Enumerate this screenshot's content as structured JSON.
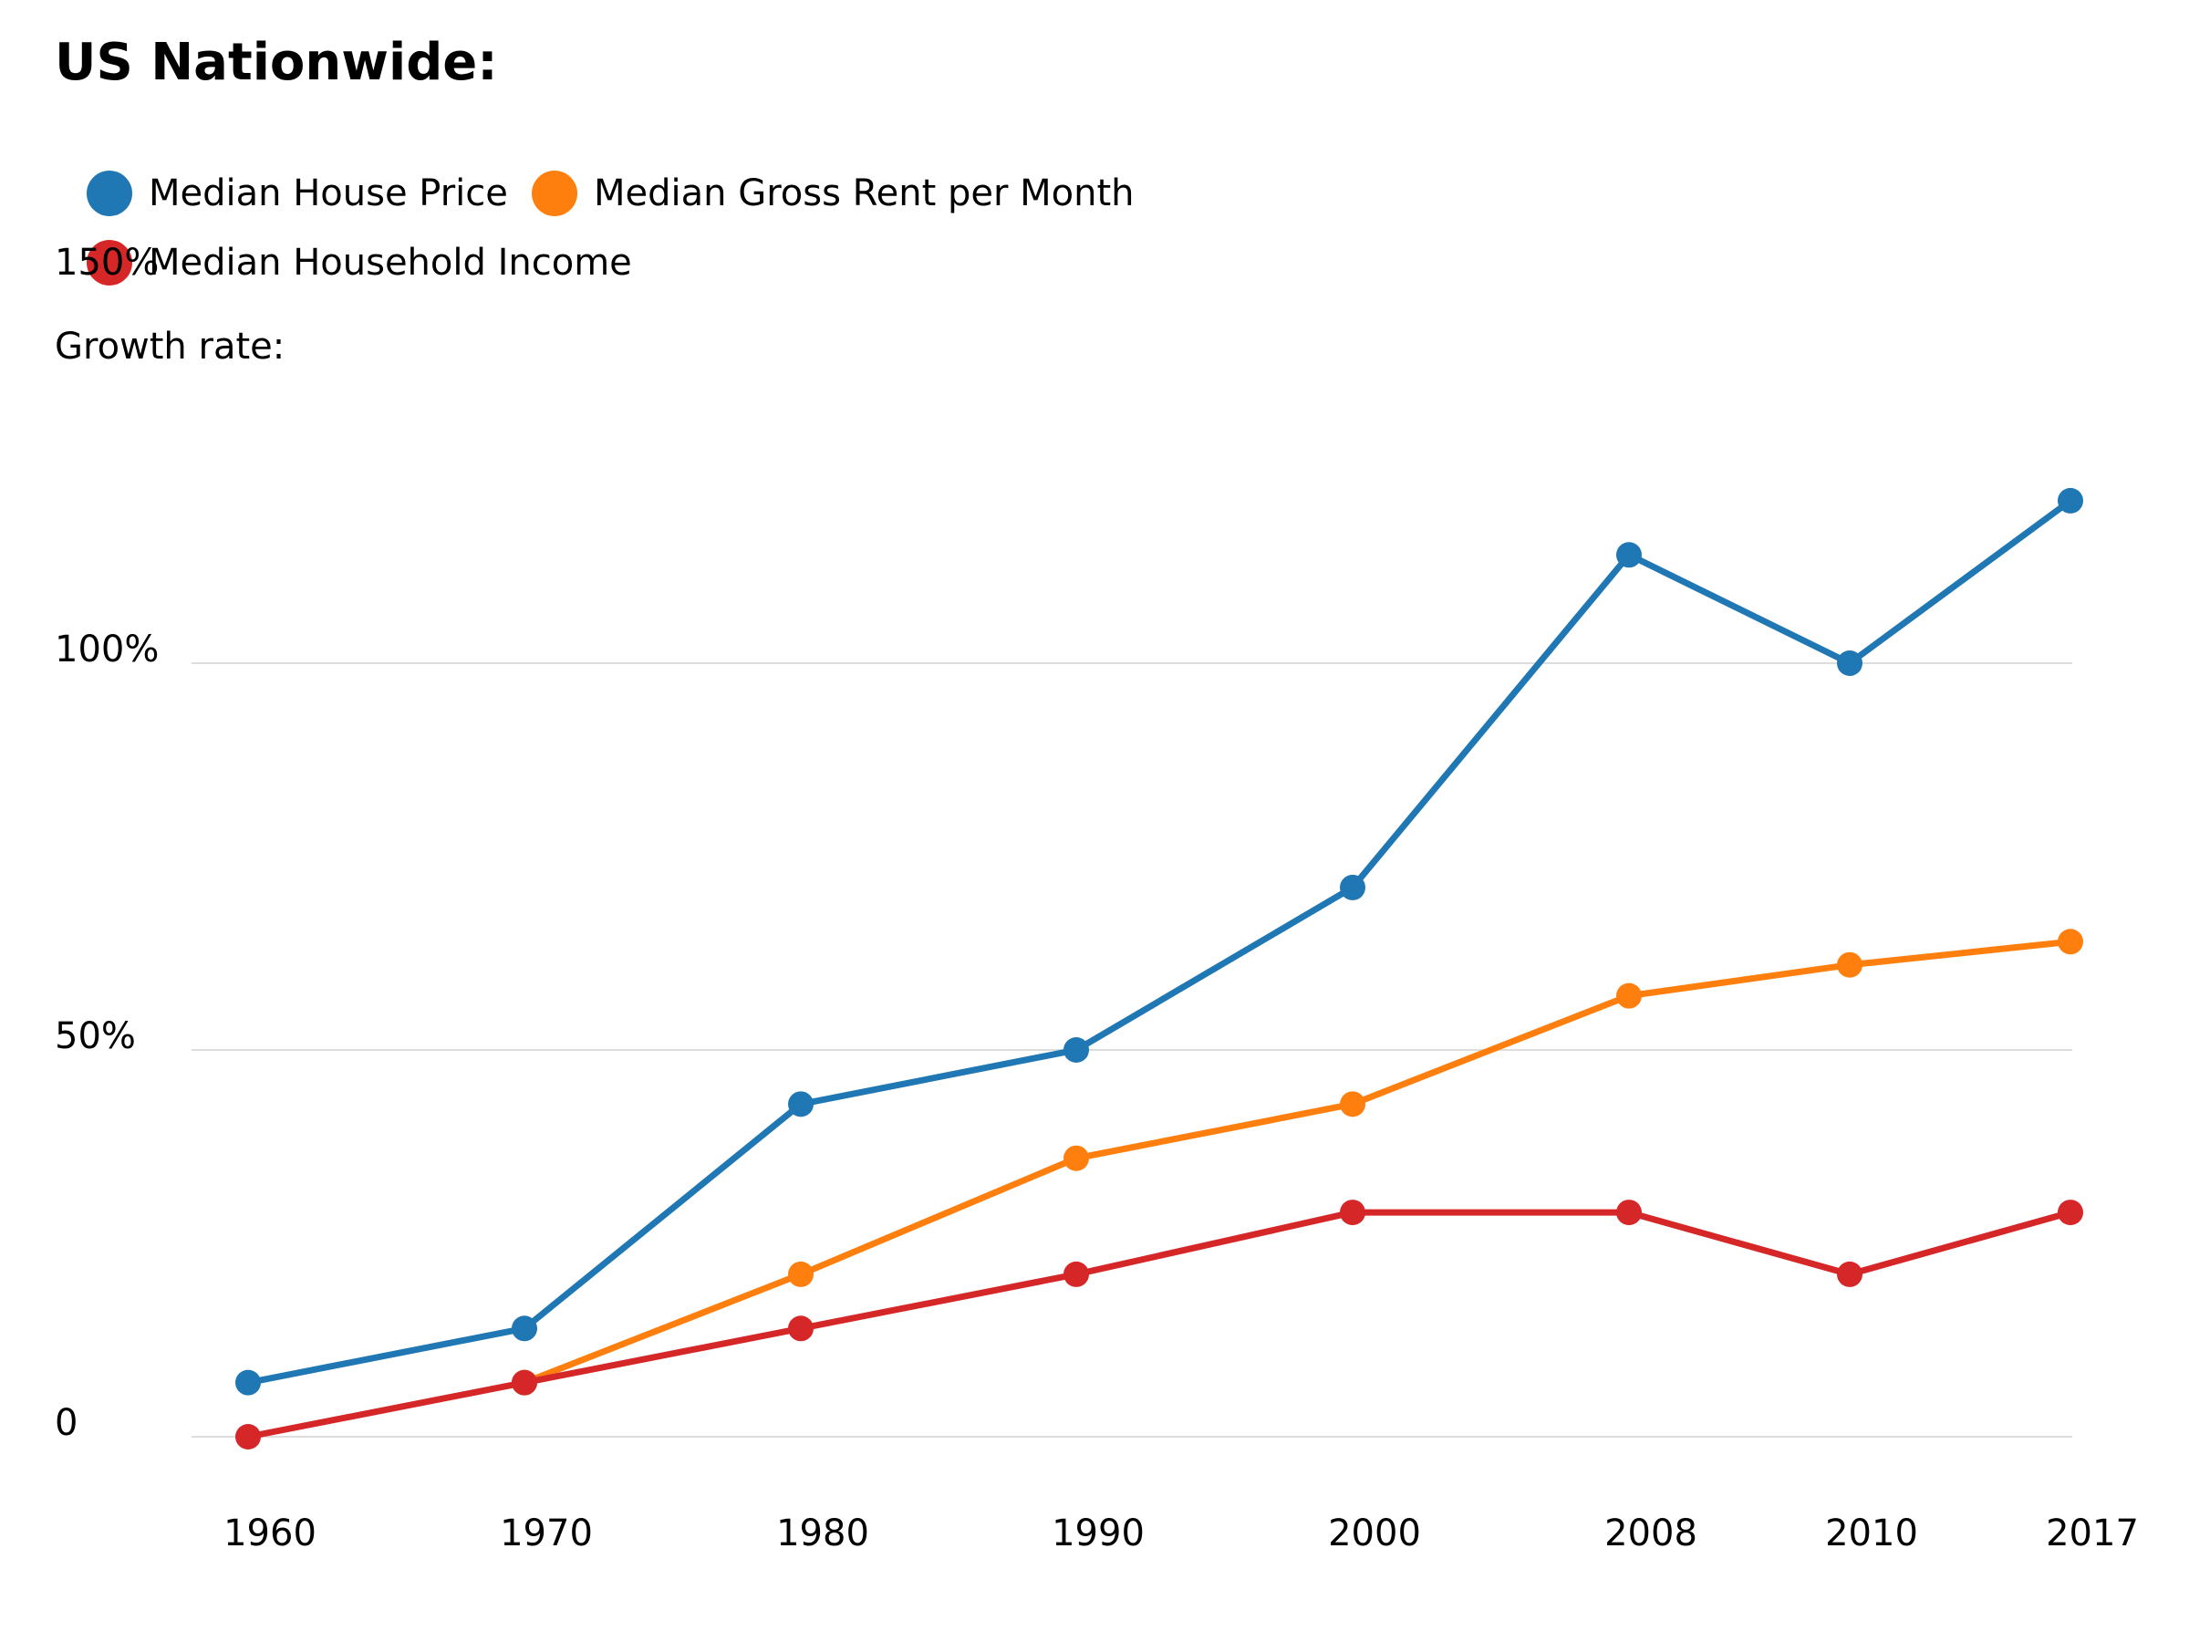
{
  "chart_data": {
    "type": "line",
    "title": "US Nationwide:",
    "ylabel": "Growth rate:",
    "xlabel": "",
    "categories": [
      "1960",
      "1970",
      "1980",
      "1990",
      "2000",
      "2008",
      "2010",
      "2017"
    ],
    "ylim": [
      0,
      150
    ],
    "y_ticks": [
      0,
      50,
      100,
      150
    ],
    "y_tick_labels": [
      "0",
      "50%",
      "100%",
      "150%"
    ],
    "grid": true,
    "legend_position": "top-left",
    "series": [
      {
        "name": "Median House Price",
        "color": "#1f77b4",
        "values": [
          7,
          14,
          43,
          50,
          71,
          114,
          100,
          121
        ]
      },
      {
        "name": "Median Gross Rent per Month",
        "color": "#ff7f0e",
        "values": [
          null,
          7,
          21,
          36,
          43,
          57,
          61,
          64
        ]
      },
      {
        "name": "Median Household Income",
        "color": "#d62728",
        "values": [
          0,
          7,
          14,
          21,
          29,
          29,
          21,
          29
        ]
      }
    ]
  }
}
